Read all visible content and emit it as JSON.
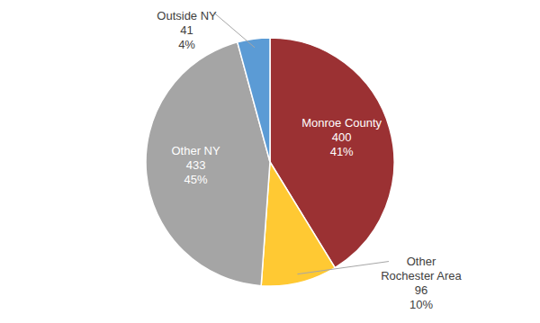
{
  "chart_data": {
    "type": "pie",
    "categories": [
      "Monroe County",
      "Other Rochester Area",
      "Other NY",
      "Outside NY"
    ],
    "values": [
      400,
      96,
      433,
      41
    ],
    "percent_labels": [
      "41%",
      "10%",
      "45%",
      "4%"
    ],
    "colors": [
      "#9b3133",
      "#ffc933",
      "#a5a5a5",
      "#5b9bd5"
    ],
    "data_labels": true
  }
}
